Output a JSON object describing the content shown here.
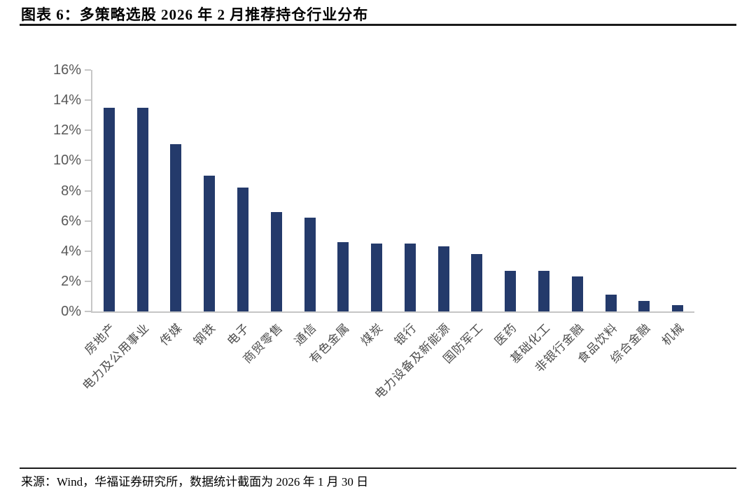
{
  "header": {
    "title": "图表 6：多策略选股 2026 年 2 月推荐持仓行业分布"
  },
  "footer": {
    "source": "来源：Wind，华福证券研究所，数据统计截面为 2026 年 1 月 30 日"
  },
  "colors": {
    "bar": "#243a6b",
    "axis": "#c6c6c6",
    "ytick_label": "#595959",
    "xtick_label": "#4d4d4d",
    "title": "#000000"
  },
  "chart_data": {
    "type": "bar",
    "title": "多策略选股 2026 年 2 月推荐持仓行业分布",
    "categories": [
      "房地产",
      "电力及公用事业",
      "传媒",
      "钢铁",
      "电子",
      "商贸零售",
      "通信",
      "有色金属",
      "煤炭",
      "银行",
      "电力设备及新能源",
      "国防军工",
      "医药",
      "基础化工",
      "非银行金融",
      "食品饮料",
      "综合金融",
      "机械"
    ],
    "values": [
      13.5,
      13.5,
      11.1,
      9.0,
      8.2,
      6.6,
      6.2,
      4.6,
      4.5,
      4.5,
      4.3,
      3.8,
      2.7,
      2.7,
      2.3,
      1.1,
      0.7,
      0.4
    ],
    "unit": "%",
    "xlabel": "",
    "ylabel": "",
    "ylim": [
      0,
      16
    ],
    "ytick_step": 2,
    "ytick_labels": [
      "0%",
      "2%",
      "4%",
      "6%",
      "8%",
      "10%",
      "12%",
      "14%",
      "16%"
    ],
    "grid": false,
    "legend": false
  }
}
